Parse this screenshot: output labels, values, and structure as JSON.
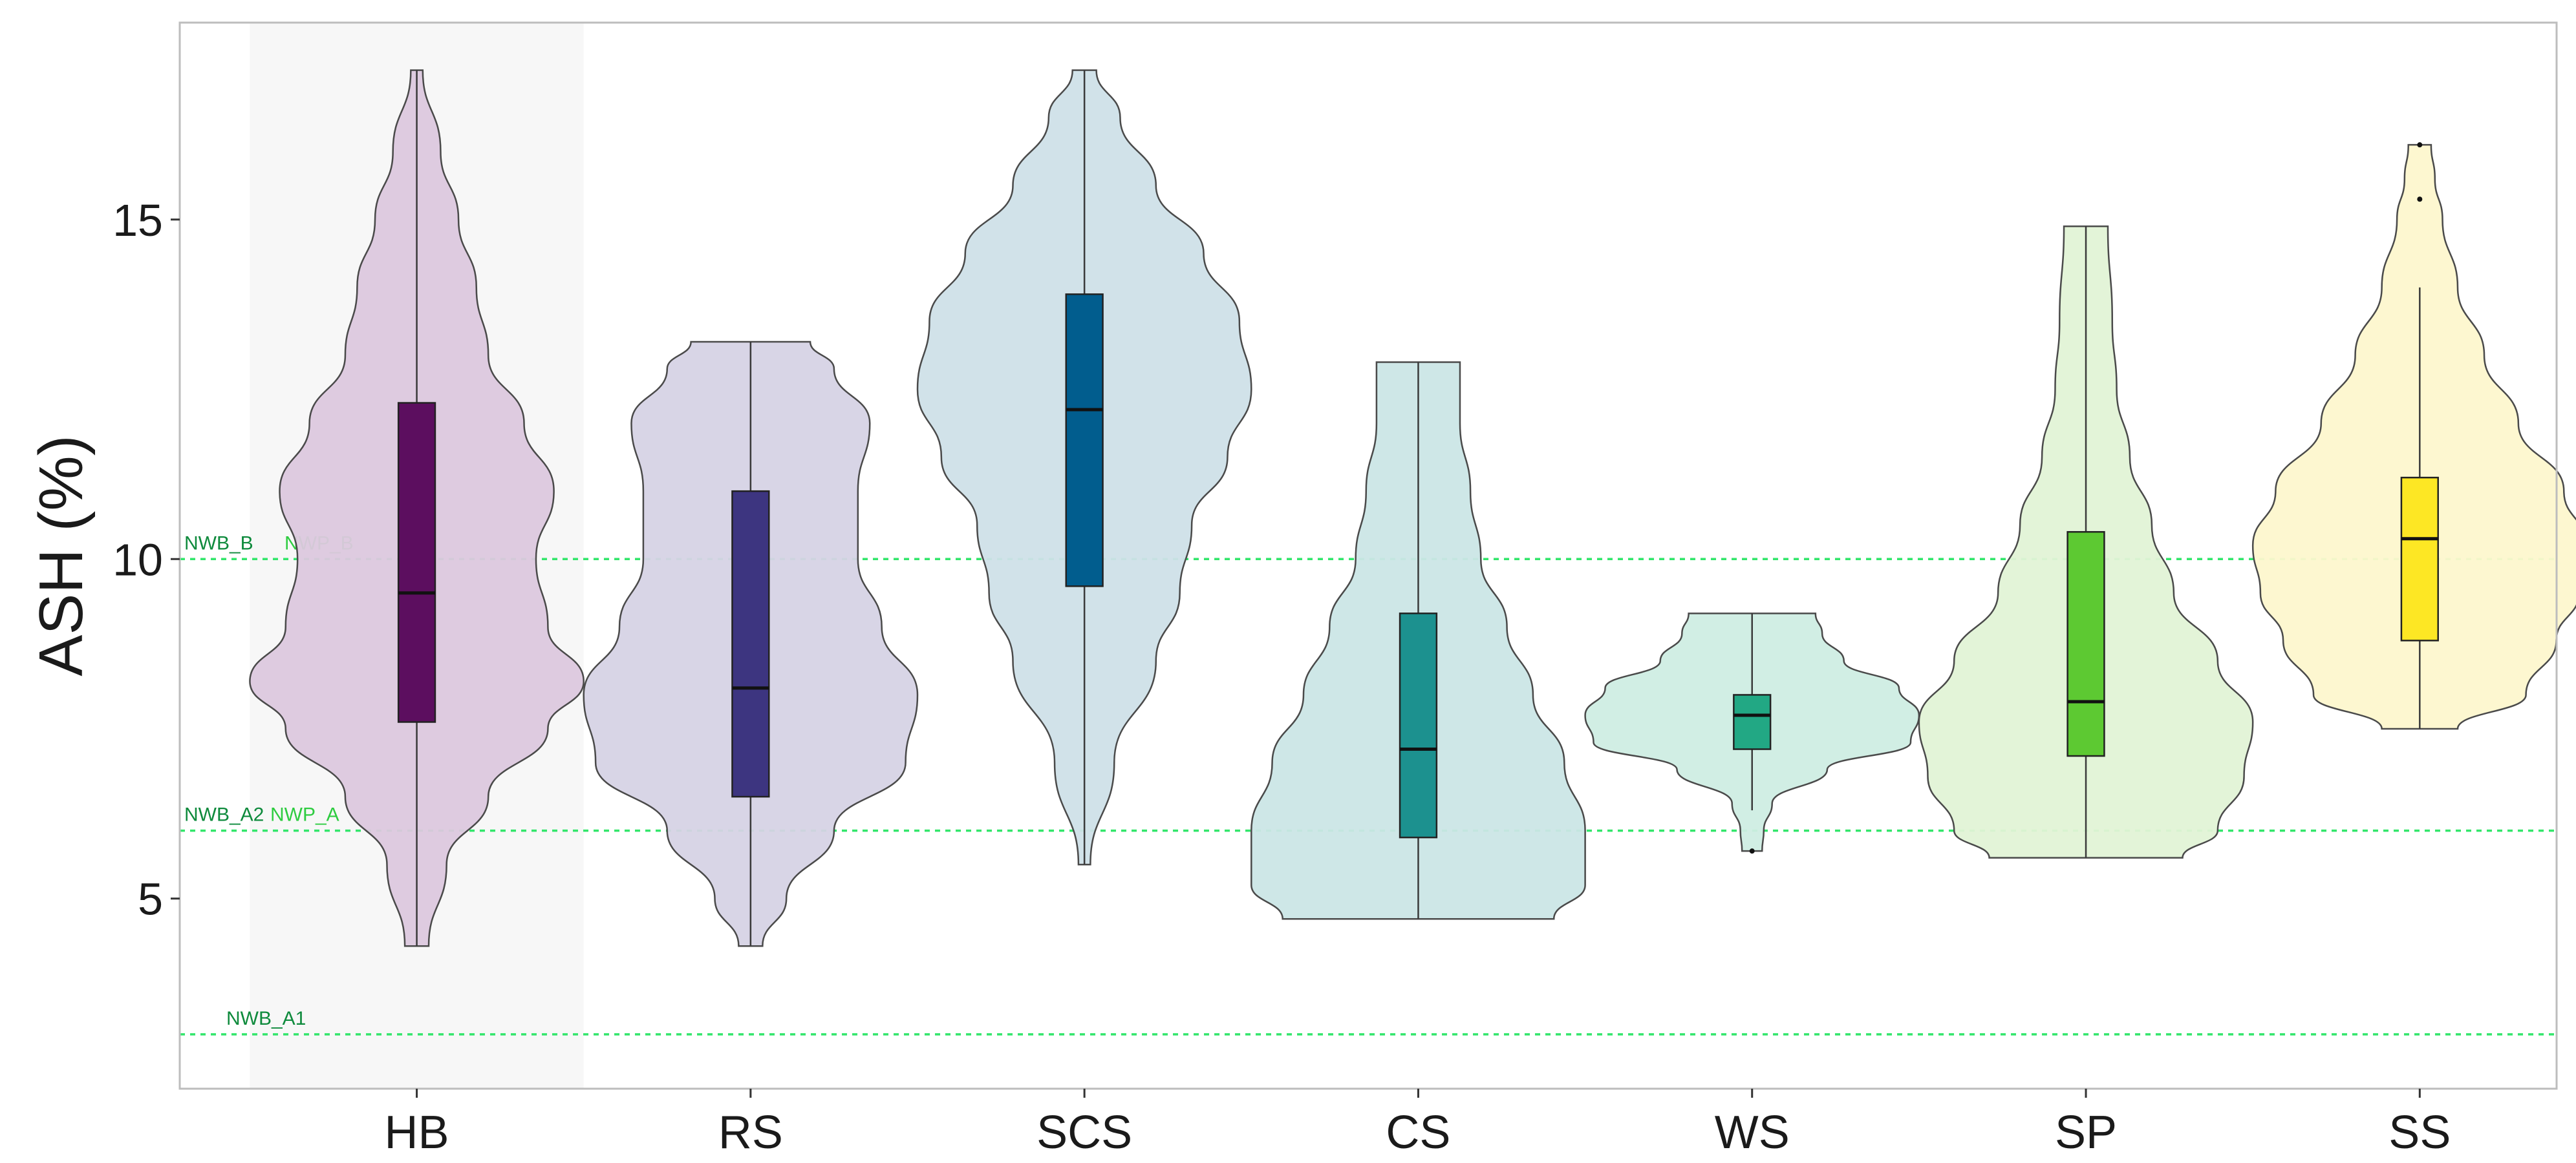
{
  "chart_data": {
    "type": "violin",
    "ylabel": "ASH (%)",
    "xlabel": "",
    "ylim": [
      2.2,
      17.9
    ],
    "yticks": [
      "5",
      "10",
      "15"
    ],
    "ytick_values": [
      5,
      10,
      15
    ],
    "grid": false,
    "highlighted_category": "HB",
    "highlight_color": "#f7f7f7",
    "categories": [
      "HB",
      "RS",
      "SCS",
      "CS",
      "WS",
      "SP",
      "SS"
    ],
    "series": [
      {
        "name": "HB",
        "color": "#5c0e5f",
        "violin_color": "#dcc8de",
        "min": 4.3,
        "q1": 7.6,
        "median": 9.5,
        "q3": 12.3,
        "max": 17.2,
        "outliers": [],
        "density": [
          [
            4.3,
            0.02
          ],
          [
            5.5,
            0.05
          ],
          [
            6.5,
            0.12
          ],
          [
            7.5,
            0.22
          ],
          [
            8.2,
            0.28
          ],
          [
            9.0,
            0.22
          ],
          [
            10.0,
            0.2
          ],
          [
            11.0,
            0.23
          ],
          [
            12.0,
            0.18
          ],
          [
            13.0,
            0.12
          ],
          [
            14.0,
            0.1
          ],
          [
            15.0,
            0.07
          ],
          [
            16.0,
            0.04
          ],
          [
            17.2,
            0.01
          ]
        ]
      },
      {
        "name": "RS",
        "color": "#3d3580",
        "violin_color": "#d6d3e5",
        "min": 4.3,
        "q1": 6.5,
        "median": 8.1,
        "q3": 11.0,
        "max": 13.2,
        "outliers": [],
        "density": [
          [
            4.3,
            0.02
          ],
          [
            5.0,
            0.06
          ],
          [
            6.0,
            0.14
          ],
          [
            7.0,
            0.26
          ],
          [
            8.0,
            0.28
          ],
          [
            9.0,
            0.22
          ],
          [
            10.0,
            0.18
          ],
          [
            11.0,
            0.18
          ],
          [
            12.0,
            0.2
          ],
          [
            12.8,
            0.14
          ],
          [
            13.2,
            0.1
          ]
        ]
      },
      {
        "name": "SCS",
        "color": "#015d8e",
        "violin_color": "#cfe0e8",
        "min": 5.5,
        "q1": 9.6,
        "median": 12.2,
        "q3": 13.9,
        "max": 17.2,
        "outliers": [],
        "density": [
          [
            5.5,
            0.01
          ],
          [
            7.0,
            0.05
          ],
          [
            8.5,
            0.12
          ],
          [
            9.5,
            0.16
          ],
          [
            10.5,
            0.18
          ],
          [
            11.5,
            0.24
          ],
          [
            12.5,
            0.28
          ],
          [
            13.5,
            0.26
          ],
          [
            14.5,
            0.2
          ],
          [
            15.5,
            0.12
          ],
          [
            16.5,
            0.06
          ],
          [
            17.2,
            0.02
          ]
        ]
      },
      {
        "name": "CS",
        "color": "#1c918f",
        "violin_color": "#cbe6e6",
        "min": 4.7,
        "q1": 5.9,
        "median": 7.2,
        "q3": 9.2,
        "max": 12.9,
        "outliers": [],
        "density": [
          [
            4.7,
            0.26
          ],
          [
            5.2,
            0.32
          ],
          [
            6.0,
            0.32
          ],
          [
            7.0,
            0.28
          ],
          [
            8.0,
            0.22
          ],
          [
            9.0,
            0.17
          ],
          [
            10.0,
            0.12
          ],
          [
            11.0,
            0.1
          ],
          [
            12.0,
            0.08
          ],
          [
            12.9,
            0.08
          ]
        ]
      },
      {
        "name": "WS",
        "color": "#22a884",
        "violin_color": "#cfede3",
        "min": 6.3,
        "q1": 7.2,
        "median": 7.7,
        "q3": 8.0,
        "max": 9.2,
        "outliers": [
          5.7
        ],
        "density": [
          [
            5.7,
            0.06
          ],
          [
            6.0,
            0.07
          ],
          [
            6.4,
            0.12
          ],
          [
            6.9,
            0.45
          ],
          [
            7.3,
            0.95
          ],
          [
            7.7,
            1.0
          ],
          [
            8.1,
            0.88
          ],
          [
            8.5,
            0.55
          ],
          [
            8.9,
            0.42
          ],
          [
            9.2,
            0.38
          ]
        ]
      },
      {
        "name": "SP",
        "color": "#5dc932",
        "violin_color": "#e2f3d6",
        "min": 5.6,
        "q1": 7.1,
        "median": 7.9,
        "q3": 10.4,
        "max": 14.9,
        "outliers": [],
        "density": [
          [
            5.6,
            0.22
          ],
          [
            6.0,
            0.3
          ],
          [
            6.8,
            0.36
          ],
          [
            7.6,
            0.38
          ],
          [
            8.5,
            0.3
          ],
          [
            9.5,
            0.2
          ],
          [
            10.5,
            0.15
          ],
          [
            11.5,
            0.1
          ],
          [
            12.5,
            0.07
          ],
          [
            13.5,
            0.06
          ],
          [
            14.9,
            0.05
          ]
        ]
      },
      {
        "name": "SS",
        "color": "#fde724",
        "violin_color": "#fdf7ce",
        "min": 7.5,
        "q1": 8.8,
        "median": 10.3,
        "q3": 11.2,
        "max": 14.0,
        "outliers": [
          15.3,
          16.1
        ],
        "density": [
          [
            7.5,
            0.1
          ],
          [
            8.0,
            0.28
          ],
          [
            8.8,
            0.36
          ],
          [
            9.5,
            0.42
          ],
          [
            10.2,
            0.44
          ],
          [
            11.0,
            0.38
          ],
          [
            12.0,
            0.26
          ],
          [
            13.0,
            0.17
          ],
          [
            14.0,
            0.1
          ],
          [
            15.0,
            0.06
          ],
          [
            15.6,
            0.04
          ],
          [
            16.1,
            0.03
          ]
        ]
      }
    ],
    "reference_lines": [
      {
        "value": 10,
        "labels": [
          {
            "text": "NWB_B",
            "color": "#0e8a3c"
          },
          {
            "text": "NWP_B",
            "color": "#2ecc40"
          }
        ]
      },
      {
        "value": 6,
        "labels": [
          {
            "text": "NWB_A2",
            "color": "#0e8a3c"
          },
          {
            "text": "NWP_A",
            "color": "#2ecc40"
          }
        ]
      },
      {
        "value": 3,
        "labels": [
          {
            "text": "NWB_A1",
            "color": "#0e8a3c"
          }
        ]
      }
    ],
    "reference_line_color": "#33e66b"
  }
}
